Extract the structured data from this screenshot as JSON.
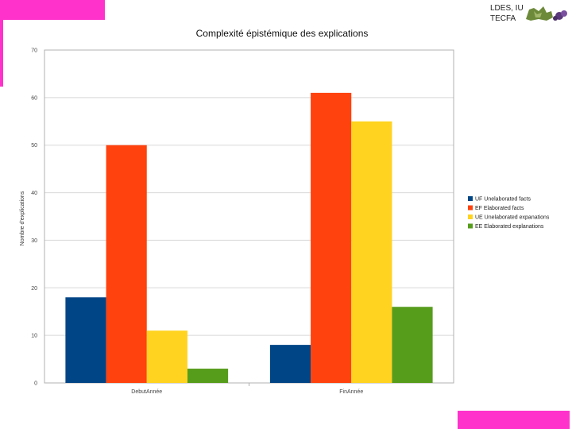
{
  "header": {
    "line1": "LDES, IUFE",
    "line2": "TECFA",
    "logo_icon": "university-crest-icon",
    "accent_color": "#ff33cc"
  },
  "chart_data": {
    "type": "bar",
    "title": "Complexité épistémique des explications",
    "xlabel": "",
    "ylabel": "Nombre d'explications",
    "categories": [
      "DebutAnnée",
      "FinAnnée"
    ],
    "ylim": [
      0,
      70
    ],
    "yticks": [
      0,
      10,
      20,
      30,
      40,
      50,
      60,
      70
    ],
    "grid": true,
    "legend_position": "right",
    "series": [
      {
        "name": "UF Unelaborated facts",
        "color": "#004586",
        "values": [
          18,
          8
        ]
      },
      {
        "name": "EF Elaborated facts",
        "color": "#ff420e",
        "values": [
          50,
          61
        ]
      },
      {
        "name": "UE Unelaborated expanations",
        "color": "#ffd320",
        "values": [
          11,
          55
        ]
      },
      {
        "name": "EE Elaborated explanations",
        "color": "#579d1c",
        "values": [
          3,
          16
        ]
      }
    ]
  }
}
